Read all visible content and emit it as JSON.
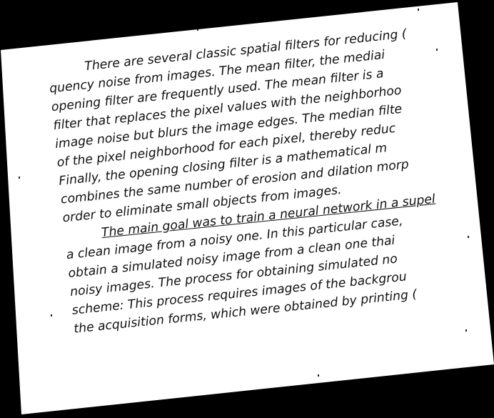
{
  "document": {
    "paragraph1": [
      "There are several classic spatial filters for reducing (",
      "quency noise from images. The mean filter, the mediai",
      "opening filter are frequently used. The mean filter is a",
      "filter that replaces the pixel values with the neighborhoo",
      "image noise but blurs the image edges. The median filte",
      "of the pixel neighborhood for each pixel, thereby reduc",
      "Finally, the opening closing filter is a mathematical m",
      "combines the same number of erosion and dilation morp",
      "order to eliminate small objects from images."
    ],
    "paragraph2": [
      "The main goal was to train a neural network in a supel",
      "a clean image from a noisy one. In this particular case,",
      "obtain a simulated noisy image from a clean one thai",
      "noisy images. The process for obtaining simulated no",
      "scheme: This process requires images of the backgrou",
      "the acquisition forms, which were obtained by printing ("
    ]
  }
}
